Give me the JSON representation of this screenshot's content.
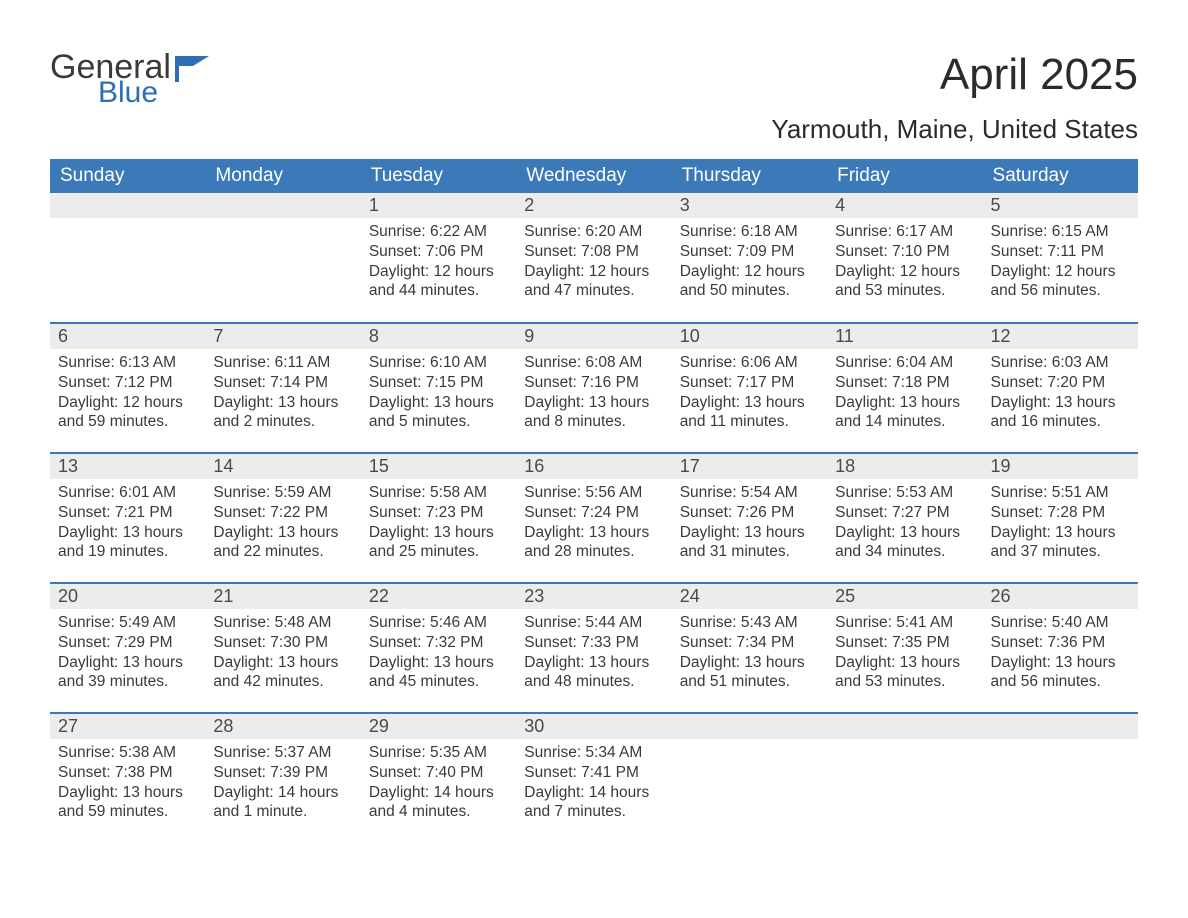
{
  "brand": {
    "word1": "General",
    "word2": "Blue",
    "flag_color": "#2d6fb5"
  },
  "title": "April 2025",
  "location": "Yarmouth, Maine, United States",
  "colors": {
    "header_bg": "#3c79b8",
    "header_text": "#ffffff",
    "daynum_bg": "#ececec",
    "row_border": "#3c79b8",
    "body_text": "#3a3a3a",
    "page_bg": "#ffffff"
  },
  "weekdays": [
    "Sunday",
    "Monday",
    "Tuesday",
    "Wednesday",
    "Thursday",
    "Friday",
    "Saturday"
  ],
  "labels": {
    "sunrise": "Sunrise:",
    "sunset": "Sunset:",
    "daylight": "Daylight:"
  },
  "weeks": [
    [
      {
        "blank": true
      },
      {
        "blank": true
      },
      {
        "day": "1",
        "sunrise": "6:22 AM",
        "sunset": "7:06 PM",
        "daylight": "12 hours and 44 minutes."
      },
      {
        "day": "2",
        "sunrise": "6:20 AM",
        "sunset": "7:08 PM",
        "daylight": "12 hours and 47 minutes."
      },
      {
        "day": "3",
        "sunrise": "6:18 AM",
        "sunset": "7:09 PM",
        "daylight": "12 hours and 50 minutes."
      },
      {
        "day": "4",
        "sunrise": "6:17 AM",
        "sunset": "7:10 PM",
        "daylight": "12 hours and 53 minutes."
      },
      {
        "day": "5",
        "sunrise": "6:15 AM",
        "sunset": "7:11 PM",
        "daylight": "12 hours and 56 minutes."
      }
    ],
    [
      {
        "day": "6",
        "sunrise": "6:13 AM",
        "sunset": "7:12 PM",
        "daylight": "12 hours and 59 minutes."
      },
      {
        "day": "7",
        "sunrise": "6:11 AM",
        "sunset": "7:14 PM",
        "daylight": "13 hours and 2 minutes."
      },
      {
        "day": "8",
        "sunrise": "6:10 AM",
        "sunset": "7:15 PM",
        "daylight": "13 hours and 5 minutes."
      },
      {
        "day": "9",
        "sunrise": "6:08 AM",
        "sunset": "7:16 PM",
        "daylight": "13 hours and 8 minutes."
      },
      {
        "day": "10",
        "sunrise": "6:06 AM",
        "sunset": "7:17 PM",
        "daylight": "13 hours and 11 minutes."
      },
      {
        "day": "11",
        "sunrise": "6:04 AM",
        "sunset": "7:18 PM",
        "daylight": "13 hours and 14 minutes."
      },
      {
        "day": "12",
        "sunrise": "6:03 AM",
        "sunset": "7:20 PM",
        "daylight": "13 hours and 16 minutes."
      }
    ],
    [
      {
        "day": "13",
        "sunrise": "6:01 AM",
        "sunset": "7:21 PM",
        "daylight": "13 hours and 19 minutes."
      },
      {
        "day": "14",
        "sunrise": "5:59 AM",
        "sunset": "7:22 PM",
        "daylight": "13 hours and 22 minutes."
      },
      {
        "day": "15",
        "sunrise": "5:58 AM",
        "sunset": "7:23 PM",
        "daylight": "13 hours and 25 minutes."
      },
      {
        "day": "16",
        "sunrise": "5:56 AM",
        "sunset": "7:24 PM",
        "daylight": "13 hours and 28 minutes."
      },
      {
        "day": "17",
        "sunrise": "5:54 AM",
        "sunset": "7:26 PM",
        "daylight": "13 hours and 31 minutes."
      },
      {
        "day": "18",
        "sunrise": "5:53 AM",
        "sunset": "7:27 PM",
        "daylight": "13 hours and 34 minutes."
      },
      {
        "day": "19",
        "sunrise": "5:51 AM",
        "sunset": "7:28 PM",
        "daylight": "13 hours and 37 minutes."
      }
    ],
    [
      {
        "day": "20",
        "sunrise": "5:49 AM",
        "sunset": "7:29 PM",
        "daylight": "13 hours and 39 minutes."
      },
      {
        "day": "21",
        "sunrise": "5:48 AM",
        "sunset": "7:30 PM",
        "daylight": "13 hours and 42 minutes."
      },
      {
        "day": "22",
        "sunrise": "5:46 AM",
        "sunset": "7:32 PM",
        "daylight": "13 hours and 45 minutes."
      },
      {
        "day": "23",
        "sunrise": "5:44 AM",
        "sunset": "7:33 PM",
        "daylight": "13 hours and 48 minutes."
      },
      {
        "day": "24",
        "sunrise": "5:43 AM",
        "sunset": "7:34 PM",
        "daylight": "13 hours and 51 minutes."
      },
      {
        "day": "25",
        "sunrise": "5:41 AM",
        "sunset": "7:35 PM",
        "daylight": "13 hours and 53 minutes."
      },
      {
        "day": "26",
        "sunrise": "5:40 AM",
        "sunset": "7:36 PM",
        "daylight": "13 hours and 56 minutes."
      }
    ],
    [
      {
        "day": "27",
        "sunrise": "5:38 AM",
        "sunset": "7:38 PM",
        "daylight": "13 hours and 59 minutes."
      },
      {
        "day": "28",
        "sunrise": "5:37 AM",
        "sunset": "7:39 PM",
        "daylight": "14 hours and 1 minute."
      },
      {
        "day": "29",
        "sunrise": "5:35 AM",
        "sunset": "7:40 PM",
        "daylight": "14 hours and 4 minutes."
      },
      {
        "day": "30",
        "sunrise": "5:34 AM",
        "sunset": "7:41 PM",
        "daylight": "14 hours and 7 minutes."
      },
      {
        "blank": true
      },
      {
        "blank": true
      },
      {
        "blank": true
      }
    ]
  ]
}
